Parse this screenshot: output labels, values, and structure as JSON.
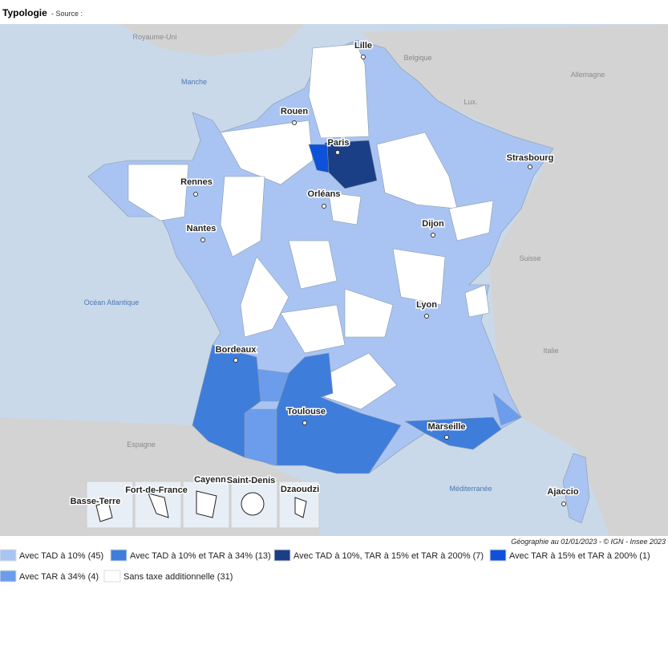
{
  "title": "Typologie",
  "source": "- Source :",
  "credit": "Géographie au 01/01/2023 - © IGN - Insee 2023",
  "cities": [
    "Lille",
    "Rouen",
    "Paris",
    "Strasbourg",
    "Rennes",
    "Orléans",
    "Nantes",
    "Dijon",
    "Lyon",
    "Bordeaux",
    "Toulouse",
    "Marseille",
    "Ajaccio"
  ],
  "places": [
    "Royaume-Uni",
    "Belgique",
    "Allemagne",
    "Manche",
    "Lux.",
    "Suisse",
    "Océan Atlantique",
    "Italie",
    "Espagne",
    "Méditerranée"
  ],
  "insets": [
    "Basse-Terre",
    "Fort-de-France",
    "Cayenne",
    "Saint-Denis",
    "Dzaoudzi"
  ],
  "legend": [
    {
      "label": "Avec TAD à 10% (45)",
      "color": "#a9c4f2"
    },
    {
      "label": "Avec TAD à 10% et TAR à 34% (13)",
      "color": "#3f7ddb"
    },
    {
      "label": "Avec TAD à 10%, TAR à 15% et TAR à 200% (7)",
      "color": "#1b3f86"
    },
    {
      "label": "Avec TAR à 15% et TAR à 200% (1)",
      "color": "#0d52d8"
    },
    {
      "label": "Avec TAR à 34% (4)",
      "color": "#6c9dec"
    },
    {
      "label": "Sans taxe additionnelle (31)",
      "color": "#ffffff"
    }
  ]
}
